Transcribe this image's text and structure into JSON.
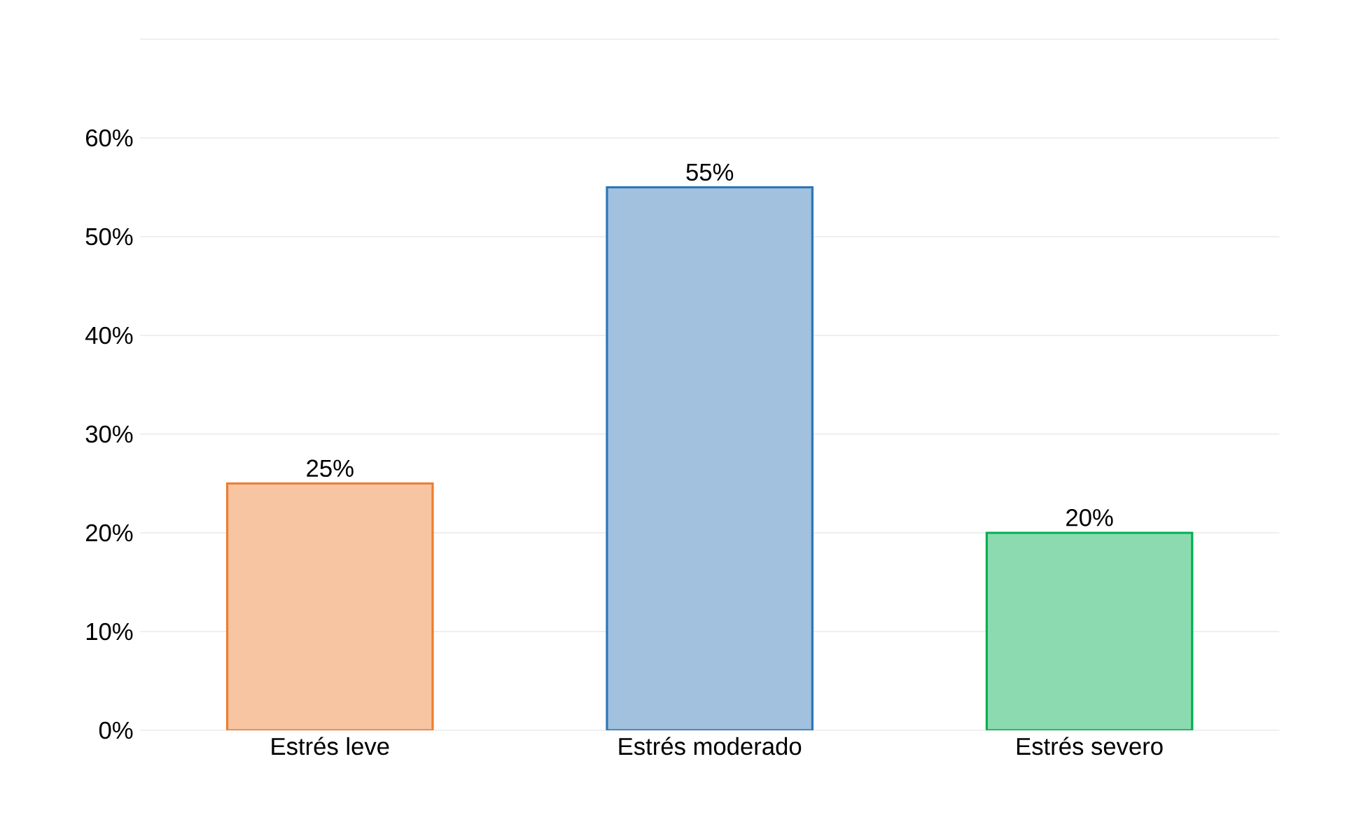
{
  "chart_data": {
    "type": "bar",
    "categories": [
      "Estrés leve",
      "Estrés moderado",
      "Estrés severo"
    ],
    "values": [
      25,
      55,
      20
    ],
    "colors": [
      "#ed7d31",
      "#2e75b6",
      "#00b050"
    ],
    "value_labels": [
      "25%",
      "55%",
      "20%"
    ],
    "ylim": [
      0,
      70
    ],
    "yticks": [
      {
        "value": 0,
        "label": "0%"
      },
      {
        "value": 10,
        "label": "10%"
      },
      {
        "value": 20,
        "label": "20%"
      },
      {
        "value": 30,
        "label": "30%"
      },
      {
        "value": 40,
        "label": "40%"
      },
      {
        "value": 50,
        "label": "50%"
      },
      {
        "value": 60,
        "label": "60%"
      },
      {
        "value": 70,
        "label": null
      }
    ],
    "grid": "y"
  }
}
